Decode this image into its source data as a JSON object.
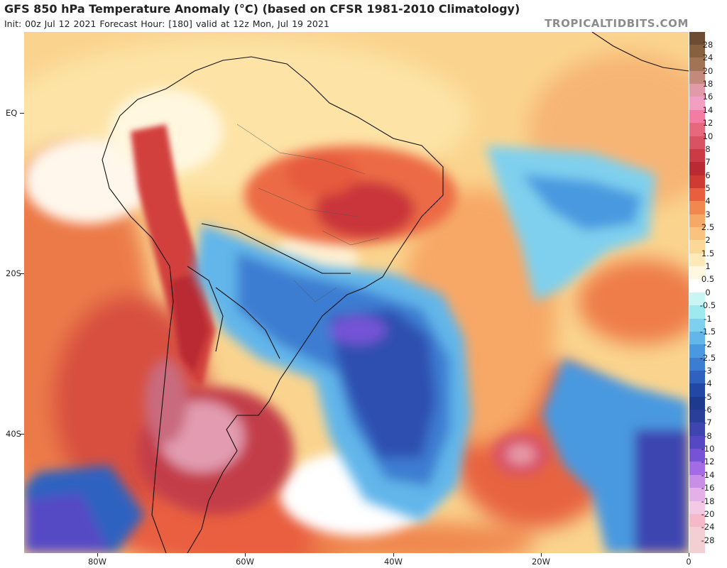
{
  "header": {
    "title": "GFS 850 hPa Temperature Anomaly (°C) (based on CFSR 1981-2010 Climatology)",
    "subtitle": "Init: 00z Jul 12 2021   Forecast Hour: [180]   valid at 12z Mon, Jul 19 2021",
    "brand": "TROPICALTIDBITS.COM"
  },
  "map": {
    "lat_labels": [
      "EQ",
      "20S",
      "40S"
    ],
    "lon_labels": [
      "80W",
      "60W",
      "40W",
      "20W",
      "0"
    ]
  },
  "colorbar": {
    "levels": [
      "28",
      "24",
      "20",
      "18",
      "16",
      "14",
      "12",
      "10",
      "8",
      "7",
      "6",
      "5",
      "4",
      "3",
      "2.5",
      "2",
      "1.5",
      "1",
      "0.5",
      "0",
      "-0.5",
      "-1",
      "-1.5",
      "-2",
      "-2.5",
      "-3",
      "-4",
      "-5",
      "-6",
      "-7",
      "-8",
      "-10",
      "-12",
      "-14",
      "-16",
      "-18",
      "-20",
      "-24",
      "-28"
    ],
    "colors": [
      "#6e4c33",
      "#86603f",
      "#a37355",
      "#c3897b",
      "#e09aa8",
      "#f29fc3",
      "#f47ba4",
      "#e7677d",
      "#d85263",
      "#cc3a46",
      "#b92a33",
      "#cf3a32",
      "#e95e3f",
      "#f08850",
      "#f6a966",
      "#f9c27e",
      "#fcd898",
      "#fdeab8",
      "#fff7df",
      "#ffffff",
      "#c9f5f5",
      "#9ee8ef",
      "#7fd0ee",
      "#62b6ea",
      "#4a99e0",
      "#3d7dd1",
      "#2f62c0",
      "#2248a6",
      "#1d3a8e",
      "#2a3f99",
      "#3e44b0",
      "#5648c4",
      "#7552d6",
      "#a46be6",
      "#c98ee8",
      "#e5afe8",
      "#f3c9e6",
      "#f7b8c8",
      "#f3cfd4"
    ]
  }
}
